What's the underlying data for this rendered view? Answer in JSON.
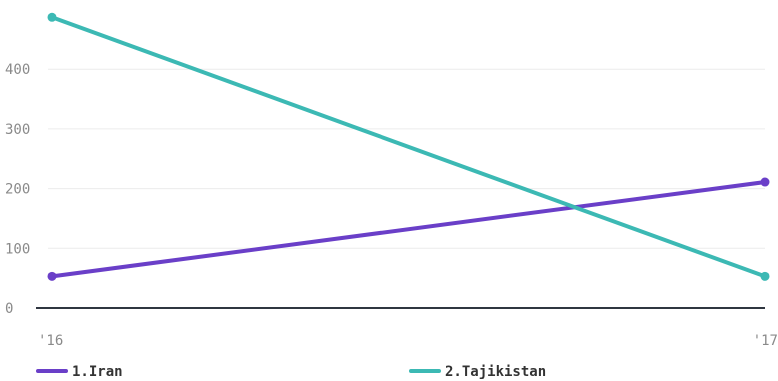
{
  "chart_data": {
    "type": "line",
    "x": [
      "'16",
      "'17"
    ],
    "series": [
      {
        "name": "1.Iran",
        "values": [
          53,
          211
        ],
        "color": "#6a3fc8"
      },
      {
        "name": "2.Tajikistan",
        "values": [
          487,
          53
        ],
        "color": "#3cb9b4"
      }
    ],
    "ylim": [
      0,
      500
    ],
    "yticks": [
      0,
      100,
      200,
      300,
      400
    ],
    "ytick_labels": [
      "0",
      "100",
      "200",
      "300",
      "400"
    ],
    "grid": true,
    "legend_position": "bottom",
    "title": "",
    "xlabel": "",
    "ylabel": ""
  }
}
